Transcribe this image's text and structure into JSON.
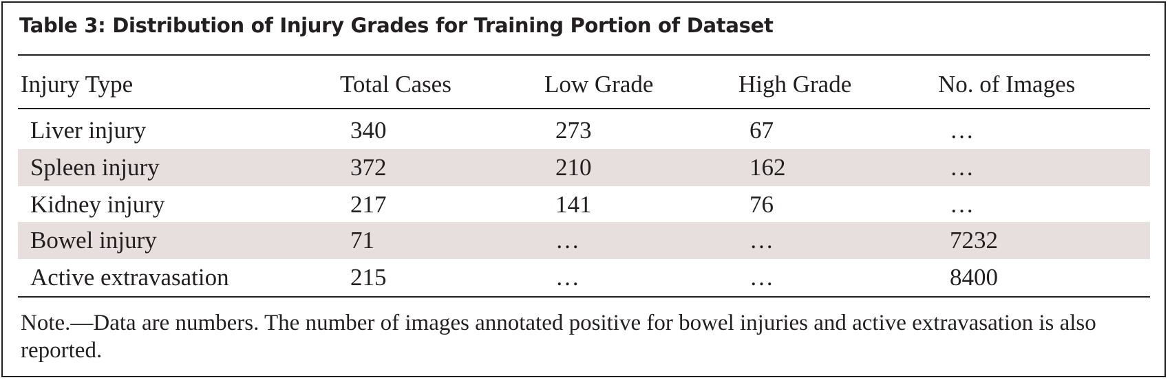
{
  "table": {
    "title": "Table 3: Distribution of Injury Grades for Training Portion of Dataset",
    "headers": [
      "Injury Type",
      "Total Cases",
      "Low Grade",
      "High Grade",
      "No. of Images"
    ],
    "rows": [
      [
        "Liver injury",
        "340",
        "273",
        "67",
        "…"
      ],
      [
        "Spleen injury",
        "372",
        "210",
        "162",
        "…"
      ],
      [
        "Kidney injury",
        "217",
        "141",
        "76",
        "…"
      ],
      [
        "Bowel injury",
        "71",
        "…",
        "…",
        "7232"
      ],
      [
        "Active extravasation",
        "215",
        "…",
        "…",
        "8400"
      ]
    ],
    "note": "Note.—Data are numbers. The number of images annotated positive for bowel injuries and active extravasation is also reported.",
    "shade_color": "#e6dfdd",
    "text_color": "#231f20"
  }
}
